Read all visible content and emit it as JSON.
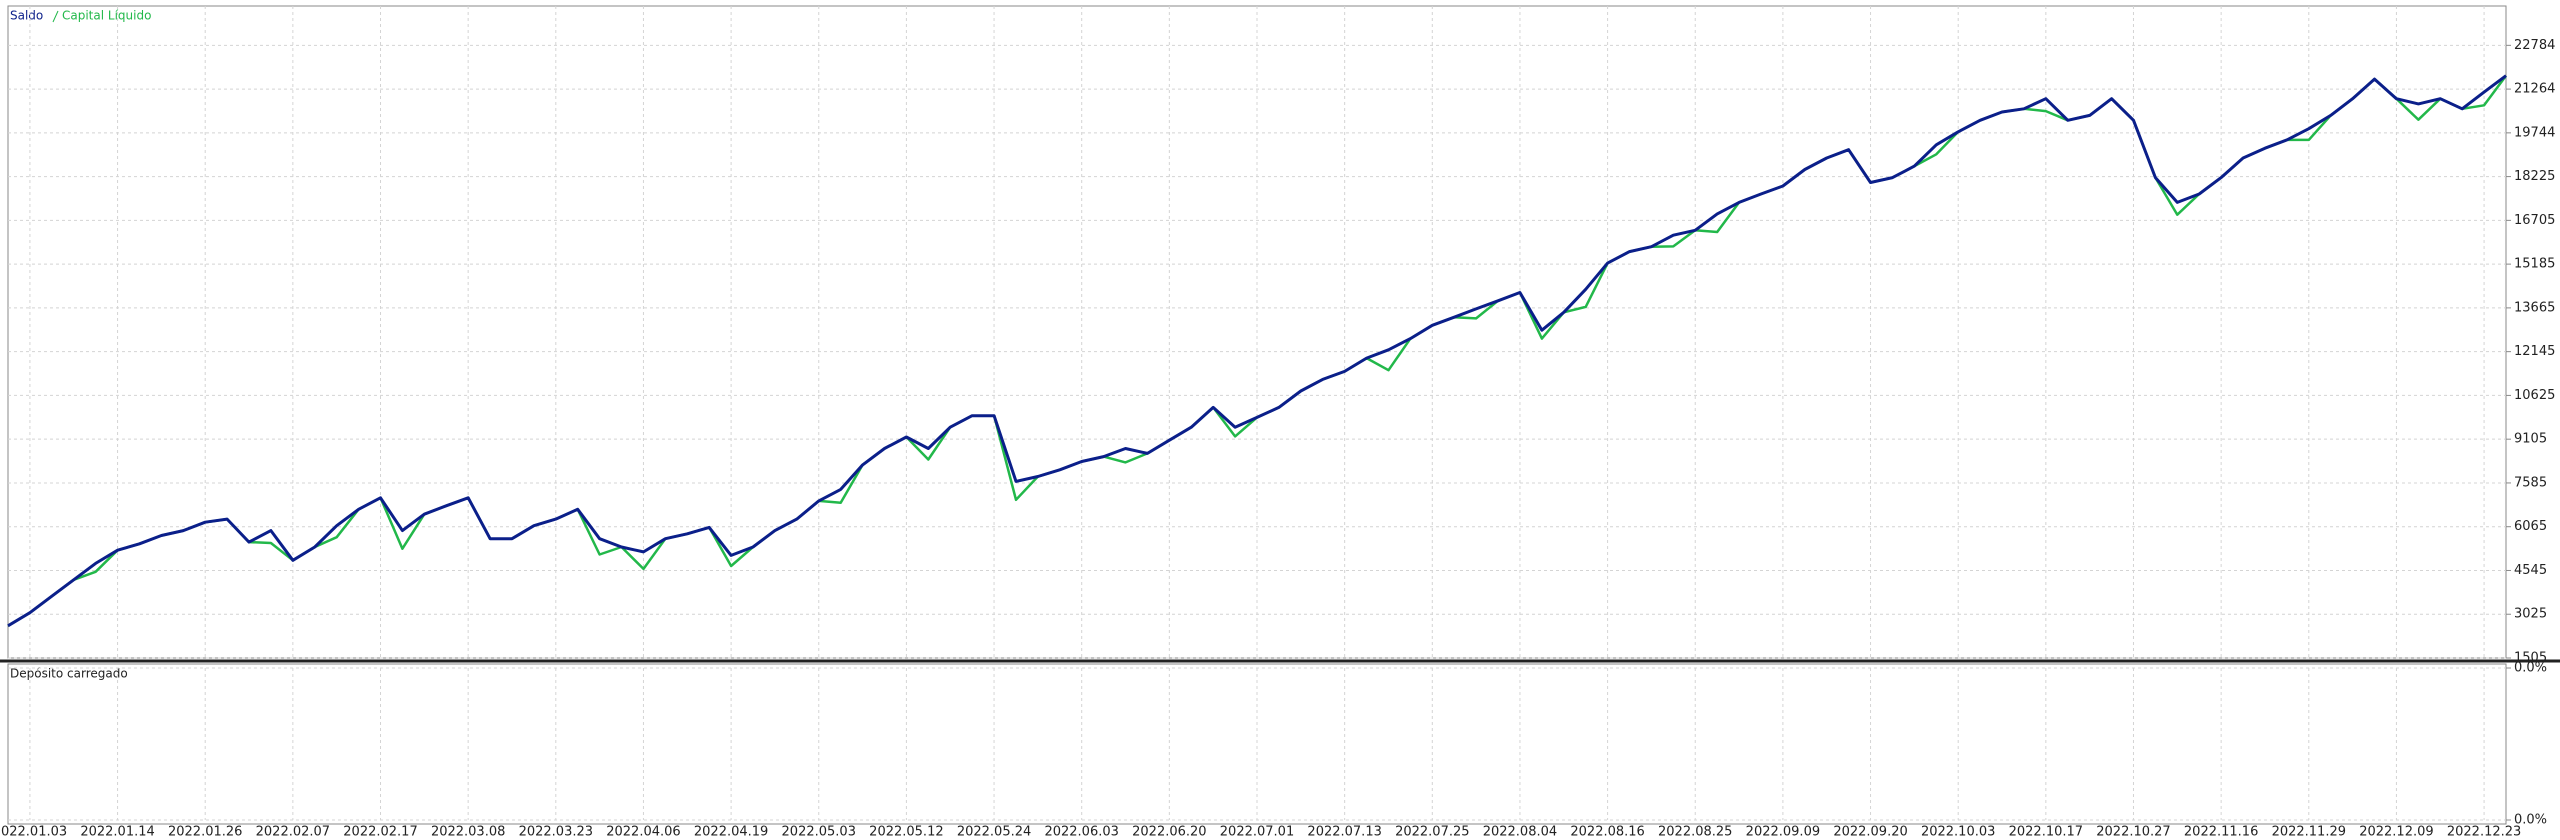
{
  "chart_data": [
    {
      "type": "line",
      "categories": [
        null,
        "2022.01.03",
        null,
        null,
        null,
        "2022.01.14",
        null,
        null,
        null,
        "2022.01.26",
        null,
        null,
        null,
        "2022.02.07",
        null,
        null,
        null,
        "2022.02.17",
        null,
        null,
        null,
        "2022.03.08",
        null,
        null,
        null,
        "2022.03.23",
        null,
        null,
        null,
        "2022.04.06",
        null,
        null,
        null,
        "2022.04.19",
        null,
        null,
        null,
        "2022.05.03",
        null,
        null,
        null,
        "2022.05.12",
        null,
        null,
        null,
        "2022.05.24",
        null,
        null,
        null,
        "2022.06.03",
        null,
        null,
        null,
        "2022.06.20",
        null,
        null,
        null,
        "2022.07.01",
        null,
        null,
        null,
        "2022.07.13",
        null,
        null,
        null,
        "2022.07.25",
        null,
        null,
        null,
        "2022.08.04",
        null,
        null,
        null,
        "2022.08.16",
        null,
        null,
        null,
        "2022.08.25",
        null,
        null,
        null,
        "2022.09.09",
        null,
        null,
        null,
        "2022.09.20",
        null,
        null,
        null,
        "2022.10.03",
        null,
        null,
        null,
        "2022.10.17",
        null,
        null,
        null,
        "2022.10.27",
        null,
        null,
        null,
        "2022.11.16",
        null,
        null,
        null,
        "2022.11.29",
        null,
        null,
        null,
        "2022.12.09",
        null,
        null,
        null,
        "2022.12.23",
        null
      ],
      "series": [
        {
          "name": "Saldo",
          "color": "#0b1f8a",
          "values": [
            2625,
            3080,
            3650,
            4220,
            4790,
            5250,
            5470,
            5760,
            5930,
            6220,
            6330,
            5530,
            5930,
            4900,
            5360,
            6100,
            6670,
            7070,
            5930,
            6500,
            6790,
            7070,
            5650,
            5650,
            6100,
            6330,
            6670,
            5650,
            5360,
            5190,
            5650,
            5820,
            6040,
            5070,
            5360,
            5930,
            6330,
            6960,
            7360,
            8210,
            8780,
            9180,
            8780,
            9520,
            9920,
            9920,
            7640,
            7810,
            8040,
            8330,
            8500,
            8780,
            8610,
            9070,
            9520,
            10210,
            9520,
            9860,
            10210,
            10780,
            11180,
            11460,
            11920,
            12210,
            12600,
            13060,
            13340,
            13630,
            13910,
            14200,
            12890,
            13510,
            14310,
            15220,
            15620,
            15790,
            16190,
            16360,
            16930,
            17330,
            17620,
            17900,
            18470,
            18870,
            19160,
            18020,
            18190,
            18590,
            19330,
            19780,
            20180,
            20470,
            20580,
            20930,
            20180,
            20350,
            20930,
            20180,
            18190,
            17330,
            17620,
            18190,
            18870,
            19210,
            19500,
            19890,
            20350,
            20930,
            21610,
            20930,
            20750,
            20930,
            20580,
            21160,
            21730
          ]
        },
        {
          "name": "Capital Líquido",
          "color": "#22b84a",
          "values": [
            2625,
            3080,
            3650,
            4220,
            4500,
            5250,
            5470,
            5760,
            5930,
            6220,
            6330,
            5530,
            5500,
            4900,
            5360,
            5700,
            6670,
            7070,
            5300,
            6500,
            6790,
            7070,
            5650,
            5650,
            6100,
            6330,
            6670,
            5100,
            5360,
            4600,
            5650,
            5820,
            6040,
            4700,
            5360,
            5930,
            6330,
            6960,
            6900,
            8210,
            8780,
            9180,
            8400,
            9520,
            9920,
            9920,
            7000,
            7810,
            8040,
            8330,
            8500,
            8300,
            8610,
            9070,
            9520,
            10210,
            9200,
            9860,
            10210,
            10780,
            11180,
            11460,
            11920,
            11500,
            12600,
            13060,
            13340,
            13300,
            13910,
            14200,
            12600,
            13510,
            13700,
            15220,
            15620,
            15790,
            15800,
            16360,
            16300,
            17330,
            17620,
            17900,
            18470,
            18870,
            19160,
            18020,
            18190,
            18590,
            19000,
            19780,
            20180,
            20470,
            20580,
            20500,
            20180,
            20350,
            20930,
            20180,
            18190,
            16900,
            17620,
            18190,
            18870,
            19210,
            19500,
            19500,
            20350,
            20930,
            21610,
            20930,
            20200,
            20930,
            20580,
            20700,
            21730
          ]
        }
      ],
      "ylim": [
        1505,
        24150
      ],
      "yticks": [
        1505,
        3025,
        4545,
        6065,
        7585,
        9105,
        10625,
        12145,
        13665,
        15185,
        16705,
        18225,
        19744,
        21264,
        22784
      ],
      "grid": true
    },
    {
      "type": "line",
      "title": "Depósito carregado",
      "ylim": [
        0,
        0.04
      ],
      "yticks": [
        {
          "value": 0.04,
          "label": "0.0%"
        },
        {
          "value": 0,
          "label": "0.0%"
        }
      ],
      "grid": true
    }
  ]
}
